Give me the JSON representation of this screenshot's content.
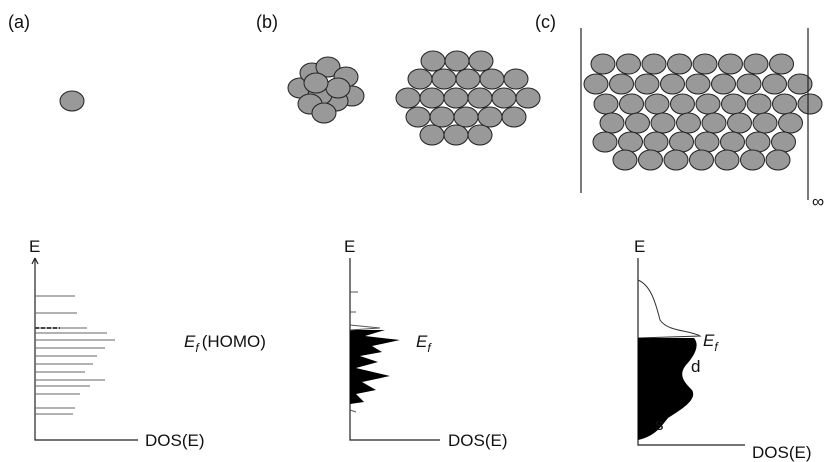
{
  "panels": [
    {
      "label": "(a)",
      "y_axis": "E",
      "x_axis": "DOS(E)",
      "fermi": {
        "symbol": "E",
        "subscript": "f",
        "note": "(HOMO)"
      }
    },
    {
      "label": "(b)",
      "y_axis": "E",
      "x_axis": "DOS(E)",
      "fermi": {
        "symbol": "E",
        "subscript": "f"
      }
    },
    {
      "label": "(c)",
      "y_axis": "E",
      "x_axis": "DOS(E)",
      "fermi": {
        "symbol": "E",
        "subscript": "f"
      },
      "bands": [
        "d",
        "s"
      ],
      "infinity": "∞"
    }
  ]
}
